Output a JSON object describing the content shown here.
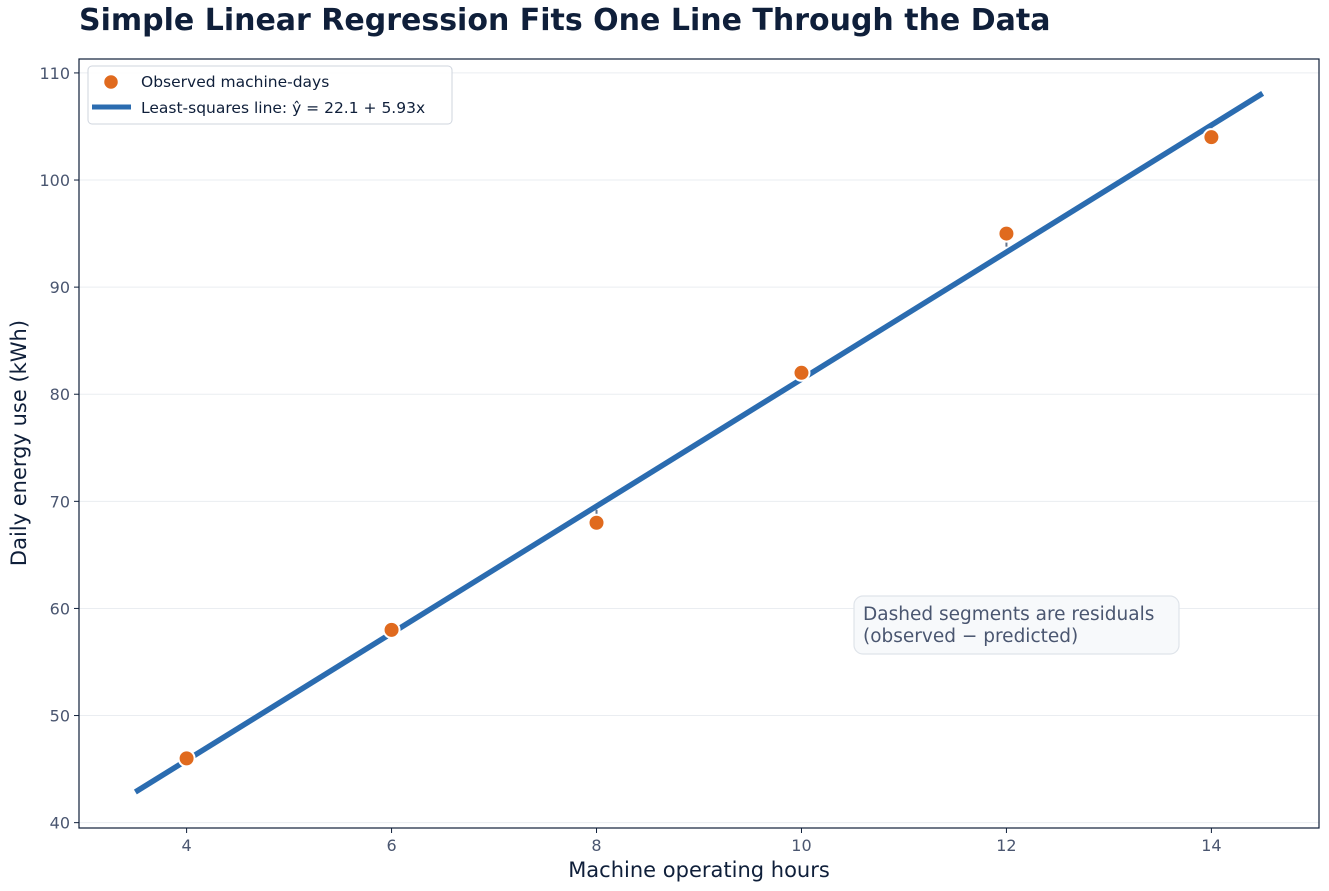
{
  "chart_data": {
    "type": "scatter",
    "title": "Simple Linear Regression Fits One Line Through the Data",
    "xlabel": "Machine operating hours",
    "ylabel": "Daily energy use (kWh)",
    "xlim": [
      2.95,
      15.05
    ],
    "ylim": [
      39.5,
      111.3
    ],
    "x_ticks": [
      4,
      6,
      8,
      10,
      12,
      14
    ],
    "y_ticks": [
      40,
      50,
      60,
      70,
      80,
      90,
      100,
      110
    ],
    "grid": "horizontal",
    "legend_position": "top-left",
    "series": [
      {
        "name": "Observed machine-days",
        "kind": "scatter",
        "x": [
          4,
          6,
          8,
          10,
          12,
          14
        ],
        "y": [
          46,
          58,
          68,
          82,
          95,
          104
        ]
      },
      {
        "name": "Least-squares line: ŷ = 22.1 + 5.93x",
        "kind": "line",
        "x": [
          3.5,
          14.5
        ],
        "y": [
          42.86,
          108.09
        ]
      }
    ],
    "residuals": {
      "style": "dashed",
      "x": [
        4,
        6,
        8,
        10,
        12,
        14
      ],
      "observed": [
        46,
        58,
        68,
        82,
        95,
        104
      ],
      "predicted": [
        45.82,
        57.68,
        69.54,
        81.4,
        93.26,
        105.12
      ]
    },
    "annotation": {
      "lines": [
        "Dashed segments are residuals",
        "(observed − predicted)"
      ]
    },
    "colors": {
      "points": "#e06a1e",
      "line": "#2b6cb0",
      "residual": "#64748b",
      "text": "#0f1f3a",
      "tick_text": "#4a5670",
      "grid": "#eaedf1",
      "annotation_bg": "#f7f9fb"
    }
  }
}
